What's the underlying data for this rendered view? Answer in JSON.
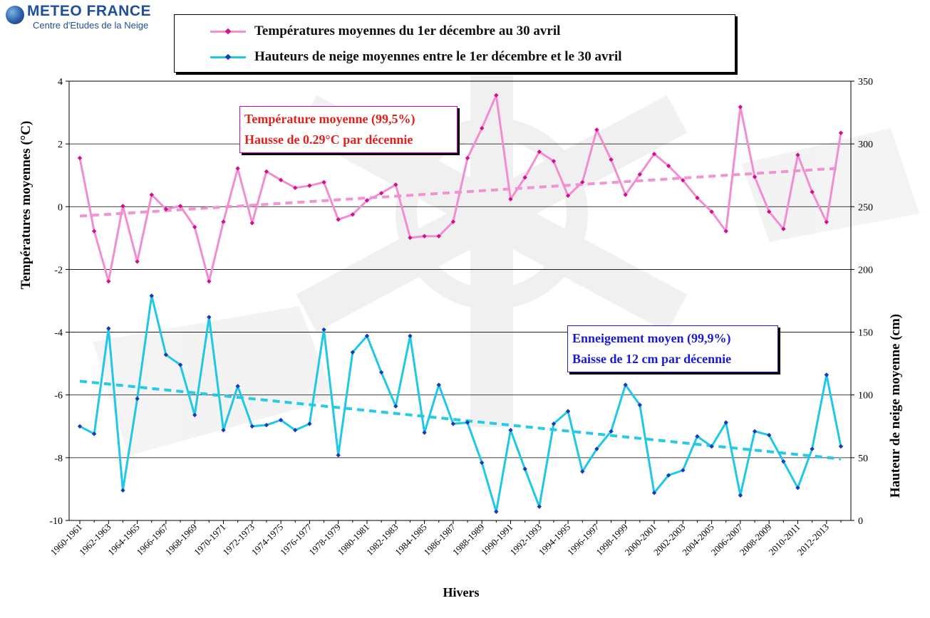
{
  "header": {
    "logo_title": "METEO FRANCE",
    "logo_subtitle": "Centre d'Etudes de la Neige"
  },
  "legend": {
    "temperature": "Températures moyennes du 1er décembre au 30 avril",
    "snow": "Hauteurs de neige moyennes entre le 1er décembre et le 30 avril"
  },
  "annotations": {
    "temp_line1": "Température moyenne (99,5%)",
    "temp_line2": "Hausse de 0.29°C par décennie",
    "snow_line1": "Enneigement moyen (99,9%)",
    "snow_line2": "Baisse de 12 cm par décennie"
  },
  "colors": {
    "temperature": "#f28ed0",
    "temperature_marker": "#d01090",
    "snow": "#1ec8e6",
    "snow_marker": "#1a3ab8",
    "temp_text": "#e0201c",
    "snow_text": "#1a1ad0"
  },
  "chart_data": {
    "type": "line",
    "xlabel": "Hivers",
    "ylabel": "Températures moyennes (°C)",
    "y2label": "Hauteur de neige moyenne (cm)",
    "ylim": [
      -10,
      4
    ],
    "y_ticks": [
      -10,
      -8,
      -6,
      -4,
      -2,
      0,
      2,
      4
    ],
    "y2lim": [
      0,
      350
    ],
    "y2_ticks": [
      0,
      50,
      100,
      150,
      200,
      250,
      300,
      350
    ],
    "grid": true,
    "x_tick_labels": [
      "1960-1961",
      "1962-1963",
      "1964-1965",
      "1966-1967",
      "1968-1969",
      "1970-1971",
      "1972-1973",
      "1974-1975",
      "1976-1977",
      "1978-1979",
      "1980-1981",
      "1982-1983",
      "1984-1985",
      "1986-1987",
      "1988-1989",
      "1990-1991",
      "1992-1993",
      "1994-1995",
      "1996-1997",
      "1998-1999",
      "2000-2001",
      "2002-2003",
      "2004-2005",
      "2006-2007",
      "2008-2009",
      "2010-2011",
      "2012-2013"
    ],
    "series": [
      {
        "axis": "left",
        "values": [
          1.55,
          -0.78,
          -2.38,
          0.02,
          -1.75,
          0.38,
          -0.08,
          0.02,
          -0.65,
          -2.38,
          -0.48,
          1.22,
          -0.52,
          1.12,
          0.85,
          0.6,
          0.67,
          0.78,
          -0.41,
          -0.25,
          0.2,
          0.43,
          0.7,
          -0.99,
          -0.94,
          -0.94,
          -0.48,
          1.55,
          2.5,
          3.55,
          0.24,
          0.93,
          1.75,
          1.45,
          0.35,
          0.78,
          2.45,
          1.5,
          0.38,
          1.03,
          1.68,
          1.3,
          0.84,
          0.28,
          -0.16,
          -0.78,
          3.18,
          0.95,
          -0.16,
          -0.71,
          1.65,
          0.47,
          -0.49,
          2.35
        ],
        "trend": {
          "start": -0.3,
          "end": 1.23
        }
      },
      {
        "axis": "right",
        "values": [
          75,
          69,
          153,
          24,
          97,
          179,
          132,
          124,
          84,
          162,
          72,
          107,
          75,
          76,
          80,
          72,
          77,
          152,
          52,
          134,
          147,
          118,
          91,
          147,
          70,
          108,
          77,
          78,
          46,
          7,
          72,
          41,
          11,
          77,
          87,
          39,
          57,
          71,
          108,
          92,
          22,
          36,
          40,
          67,
          59,
          78,
          20,
          71,
          68,
          47,
          26,
          57,
          116,
          59
        ],
        "trend": {
          "start": 111,
          "end": 49
        }
      }
    ]
  }
}
